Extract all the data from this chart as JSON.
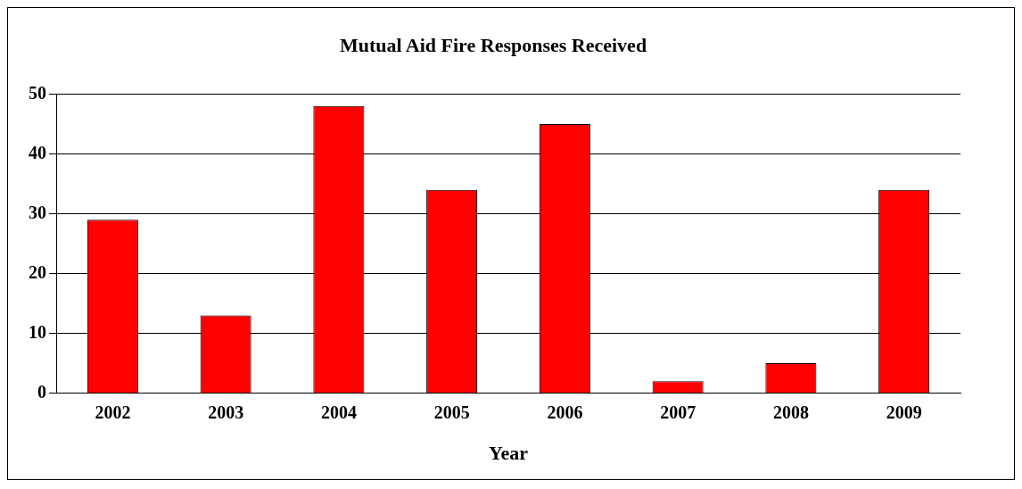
{
  "chart_data": {
    "type": "bar",
    "title": "Mutual Aid Fire Responses Received",
    "xlabel": "Year",
    "categories": [
      "2002",
      "2003",
      "2004",
      "2005",
      "2006",
      "2007",
      "2008",
      "2009"
    ],
    "values": [
      29,
      13,
      48,
      34,
      45,
      2,
      5,
      34
    ],
    "color": "#ff0000",
    "ylim": [
      0,
      50
    ],
    "yticks": [
      0,
      10,
      20,
      30,
      40,
      50
    ],
    "grid": "y",
    "legend": false
  }
}
